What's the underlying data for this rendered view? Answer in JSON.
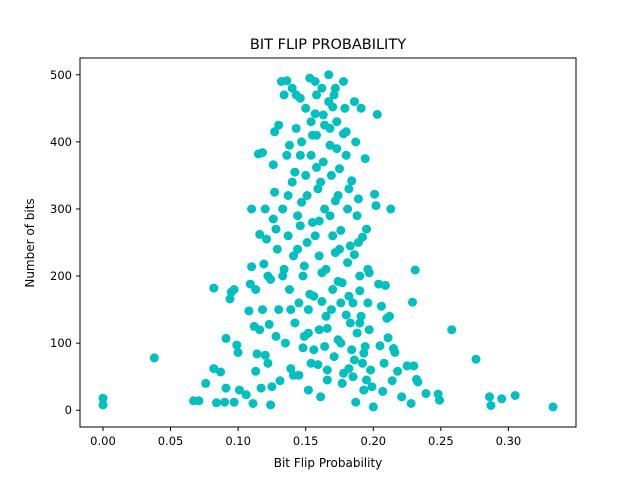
{
  "chart_data": {
    "type": "scatter",
    "title": "BIT FLIP PROBABILITY",
    "xlabel": "Bit Flip Probability",
    "ylabel": "Number of bits",
    "xlim": [
      -0.017,
      0.35
    ],
    "ylim": [
      -25,
      525
    ],
    "xticks": [
      0.0,
      0.05,
      0.1,
      0.15,
      0.2,
      0.25,
      0.3
    ],
    "xtick_labels": [
      "0.00",
      "0.05",
      "0.10",
      "0.15",
      "0.20",
      "0.25",
      "0.30"
    ],
    "yticks": [
      0,
      100,
      200,
      300,
      400,
      500
    ],
    "ytick_labels": [
      "0",
      "100",
      "200",
      "300",
      "400",
      "500"
    ],
    "grid": false,
    "marker_color": "#00bfbf",
    "series": [
      {
        "points": [
          [
            0.0,
            18
          ],
          [
            0.0,
            8
          ],
          [
            0.038,
            78
          ],
          [
            0.067,
            14
          ],
          [
            0.071,
            14
          ],
          [
            0.076,
            40
          ],
          [
            0.082,
            182
          ],
          [
            0.082,
            62
          ],
          [
            0.084,
            11
          ],
          [
            0.087,
            57
          ],
          [
            0.09,
            12
          ],
          [
            0.091,
            107
          ],
          [
            0.091,
            33
          ],
          [
            0.094,
            166
          ],
          [
            0.095,
            176
          ],
          [
            0.097,
            180
          ],
          [
            0.097,
            12
          ],
          [
            0.099,
            97
          ],
          [
            0.1,
            86
          ],
          [
            0.101,
            30
          ],
          [
            0.106,
            23
          ],
          [
            0.108,
            148
          ],
          [
            0.109,
            188
          ],
          [
            0.11,
            214
          ],
          [
            0.111,
            10
          ],
          [
            0.112,
            125
          ],
          [
            0.113,
            58
          ],
          [
            0.114,
            84
          ],
          [
            0.115,
            382
          ],
          [
            0.116,
            262
          ],
          [
            0.116,
            120
          ],
          [
            0.117,
            33
          ],
          [
            0.118,
            384
          ],
          [
            0.119,
            218
          ],
          [
            0.12,
            300
          ],
          [
            0.121,
            255
          ],
          [
            0.122,
            70
          ],
          [
            0.123,
            128
          ],
          [
            0.124,
            195
          ],
          [
            0.124,
            8
          ],
          [
            0.126,
            366
          ],
          [
            0.127,
            415
          ],
          [
            0.127,
            325
          ],
          [
            0.128,
            270
          ],
          [
            0.129,
            240
          ],
          [
            0.13,
            150
          ],
          [
            0.131,
            44
          ],
          [
            0.132,
            490
          ],
          [
            0.133,
            300
          ],
          [
            0.134,
            210
          ],
          [
            0.135,
            100
          ],
          [
            0.136,
            491
          ],
          [
            0.136,
            380
          ],
          [
            0.137,
            260
          ],
          [
            0.138,
            180
          ],
          [
            0.139,
            62
          ],
          [
            0.14,
            480
          ],
          [
            0.14,
            340
          ],
          [
            0.141,
            230
          ],
          [
            0.142,
            130
          ],
          [
            0.143,
            470
          ],
          [
            0.143,
            420
          ],
          [
            0.144,
            290
          ],
          [
            0.145,
            160
          ],
          [
            0.145,
            52
          ],
          [
            0.146,
            465
          ],
          [
            0.147,
            400
          ],
          [
            0.147,
            310
          ],
          [
            0.148,
            200
          ],
          [
            0.149,
            110
          ],
          [
            0.15,
            450
          ],
          [
            0.15,
            350
          ],
          [
            0.151,
            250
          ],
          [
            0.152,
            150
          ],
          [
            0.152,
            30
          ],
          [
            0.153,
            495
          ],
          [
            0.154,
            430
          ],
          [
            0.154,
            380
          ],
          [
            0.155,
            280
          ],
          [
            0.156,
            170
          ],
          [
            0.156,
            90
          ],
          [
            0.157,
            490
          ],
          [
            0.158,
            470
          ],
          [
            0.158,
            410
          ],
          [
            0.159,
            330
          ],
          [
            0.16,
            230
          ],
          [
            0.16,
            120
          ],
          [
            0.161,
            20
          ],
          [
            0.162,
            480
          ],
          [
            0.163,
            440
          ],
          [
            0.163,
            370
          ],
          [
            0.164,
            300
          ],
          [
            0.165,
            210
          ],
          [
            0.165,
            140
          ],
          [
            0.166,
            60
          ],
          [
            0.167,
            500
          ],
          [
            0.167,
            460
          ],
          [
            0.168,
            420
          ],
          [
            0.169,
            350
          ],
          [
            0.17,
            260
          ],
          [
            0.17,
            180
          ],
          [
            0.171,
            80
          ],
          [
            0.172,
            480
          ],
          [
            0.173,
            430
          ],
          [
            0.173,
            390
          ],
          [
            0.174,
            320
          ],
          [
            0.175,
            240
          ],
          [
            0.176,
            160
          ],
          [
            0.176,
            100
          ],
          [
            0.177,
            40
          ],
          [
            0.178,
            490
          ],
          [
            0.179,
            450
          ],
          [
            0.18,
            380
          ],
          [
            0.181,
            300
          ],
          [
            0.181,
            220
          ],
          [
            0.182,
            170
          ],
          [
            0.183,
            130
          ],
          [
            0.184,
            90
          ],
          [
            0.185,
            50
          ],
          [
            0.186,
            460
          ],
          [
            0.187,
            400
          ],
          [
            0.188,
            290
          ],
          [
            0.189,
            250
          ],
          [
            0.19,
            200
          ],
          [
            0.191,
            140
          ],
          [
            0.192,
            70
          ],
          [
            0.193,
            30
          ],
          [
            0.194,
            375
          ],
          [
            0.195,
            270
          ],
          [
            0.196,
            210
          ],
          [
            0.197,
            120
          ],
          [
            0.198,
            60
          ],
          [
            0.2,
            5
          ],
          [
            0.201,
            322
          ],
          [
            0.202,
            305
          ],
          [
            0.203,
            441
          ],
          [
            0.204,
            188
          ],
          [
            0.205,
            96
          ],
          [
            0.206,
            155
          ],
          [
            0.207,
            28
          ],
          [
            0.208,
            70
          ],
          [
            0.209,
            186
          ],
          [
            0.21,
            137
          ],
          [
            0.211,
            108
          ],
          [
            0.212,
            140
          ],
          [
            0.213,
            300
          ],
          [
            0.214,
            44
          ],
          [
            0.215,
            92
          ],
          [
            0.216,
            86
          ],
          [
            0.218,
            58
          ],
          [
            0.221,
            20
          ],
          [
            0.225,
            66
          ],
          [
            0.228,
            10
          ],
          [
            0.229,
            161
          ],
          [
            0.23,
            66
          ],
          [
            0.231,
            209
          ],
          [
            0.232,
            46
          ],
          [
            0.233,
            42
          ],
          [
            0.239,
            25
          ],
          [
            0.248,
            24
          ],
          [
            0.249,
            15
          ],
          [
            0.258,
            120
          ],
          [
            0.276,
            76
          ],
          [
            0.286,
            20
          ],
          [
            0.287,
            7
          ],
          [
            0.295,
            17
          ],
          [
            0.305,
            22
          ],
          [
            0.333,
            5
          ],
          [
            0.12,
            82
          ],
          [
            0.125,
            35
          ],
          [
            0.128,
            110
          ],
          [
            0.133,
            200
          ],
          [
            0.137,
            320
          ],
          [
            0.139,
            150
          ],
          [
            0.141,
            52
          ],
          [
            0.144,
            240
          ],
          [
            0.146,
            380
          ],
          [
            0.148,
            93
          ],
          [
            0.151,
            320
          ],
          [
            0.153,
            173
          ],
          [
            0.155,
            410
          ],
          [
            0.157,
            260
          ],
          [
            0.159,
            68
          ],
          [
            0.161,
            340
          ],
          [
            0.162,
            205
          ],
          [
            0.164,
            425
          ],
          [
            0.166,
            122
          ],
          [
            0.168,
            290
          ],
          [
            0.169,
            150
          ],
          [
            0.171,
            470
          ],
          [
            0.172,
            235
          ],
          [
            0.174,
            105
          ],
          [
            0.175,
            360
          ],
          [
            0.177,
            190
          ],
          [
            0.178,
            55
          ],
          [
            0.18,
            415
          ],
          [
            0.182,
            330
          ],
          [
            0.183,
            245
          ],
          [
            0.185,
            160
          ],
          [
            0.186,
            75
          ],
          [
            0.187,
            12
          ],
          [
            0.189,
            315
          ],
          [
            0.19,
            130
          ],
          [
            0.192,
            258
          ],
          [
            0.193,
            85
          ],
          [
            0.195,
            45
          ],
          [
            0.197,
            205
          ],
          [
            0.199,
            35
          ],
          [
            0.11,
            300
          ],
          [
            0.113,
            180
          ],
          [
            0.118,
            150
          ],
          [
            0.122,
            200
          ],
          [
            0.126,
            285
          ],
          [
            0.13,
            425
          ],
          [
            0.134,
            470
          ],
          [
            0.138,
            395
          ],
          [
            0.142,
            355
          ],
          [
            0.146,
            275
          ],
          [
            0.149,
            215
          ],
          [
            0.152,
            115
          ],
          [
            0.154,
            70
          ],
          [
            0.157,
            442
          ],
          [
            0.158,
            362
          ],
          [
            0.16,
            282
          ],
          [
            0.162,
            162
          ],
          [
            0.164,
            95
          ],
          [
            0.166,
            45
          ],
          [
            0.168,
            395
          ],
          [
            0.17,
            452
          ],
          [
            0.172,
            312
          ],
          [
            0.174,
            192
          ],
          [
            0.176,
            268
          ],
          [
            0.178,
            412
          ],
          [
            0.18,
            142
          ],
          [
            0.182,
            62
          ],
          [
            0.184,
            342
          ],
          [
            0.186,
            232
          ],
          [
            0.188,
            115
          ],
          [
            0.19,
            178
          ],
          [
            0.191,
            450
          ],
          [
            0.194,
            95
          ],
          [
            0.196,
            160
          ]
        ]
      }
    ]
  }
}
